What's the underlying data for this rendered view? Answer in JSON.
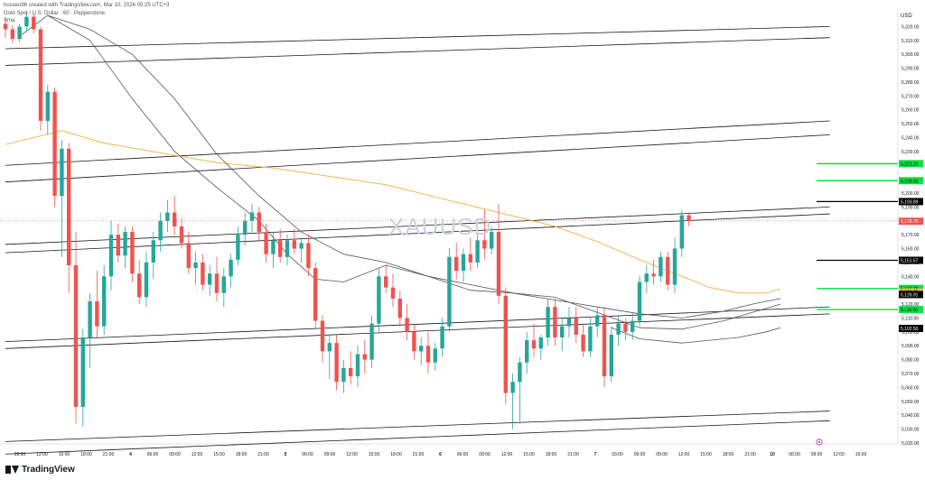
{
  "header": {
    "credit": "husseo96 created with TradingView.com, Mar 10, 2026 05:25 UTC+3",
    "symbol_line": "Gold Spot / U.S. Dollar · 60 · Pepperstone",
    "indicator": "Sma"
  },
  "watermark": "XAUUSD",
  "brand": "TradingView",
  "currency": "USD",
  "colors": {
    "up": "#26a69a",
    "down": "#ef5350",
    "sma200": "#f0b74e",
    "sma_dark": "#555555",
    "green_level": "#00e640",
    "black_level": "#000000"
  },
  "chart_data": {
    "type": "candlestick",
    "y_axis": {
      "min": 5020,
      "max": 5330,
      "ticks": [
        5020,
        5030,
        5040,
        5050,
        5060,
        5070,
        5080,
        5090,
        5100,
        5110,
        5120,
        5130,
        5140,
        5150,
        5160,
        5170,
        5180,
        5190,
        5200,
        5210,
        5220,
        5230,
        5240,
        5250,
        5260,
        5270,
        5280,
        5290,
        5300,
        5310,
        5320
      ],
      "tick_labels": [
        "5,020.00",
        "5,030.00",
        "5,040.00",
        "5,050.00",
        "5,060.00",
        "5,070.00",
        "5,080.00",
        "5,090.00",
        "5,100.00",
        "5,110.00",
        "5,120.00",
        "5,130.00",
        "5,140.00",
        "5,150.00",
        "5,160.00",
        "5,170.00",
        "5,180.00",
        "5,190.00",
        "5,200.00",
        "5,210.00",
        "5,220.00",
        "5,230.00",
        "5,240.00",
        "5,250.00",
        "5,260.00",
        "5,270.00",
        "5,280.00",
        "5,290.00",
        "5,300.00",
        "5,310.00",
        "5,320.00"
      ]
    },
    "x_axis": {
      "labels": [
        "09:00",
        "12:00",
        "15:00",
        "18:00",
        "21:00",
        "4",
        "06:00",
        "09:00",
        "12:00",
        "15:00",
        "18:00",
        "21:00",
        "5",
        "06:00",
        "09:00",
        "12:00",
        "15:00",
        "18:00",
        "21:00",
        "6",
        "06:00",
        "09:00",
        "12:00",
        "15:00",
        "18:00",
        "21:00",
        "7",
        "03:00",
        "06:00",
        "09:00",
        "12:00",
        "15:00",
        "18:00",
        "21:00",
        "10",
        "06:00",
        "09:00",
        "12:00",
        "15:00"
      ]
    },
    "price_labels": [
      {
        "value": 5221.21,
        "text": "5,221.21",
        "style": "green"
      },
      {
        "value": 5208.93,
        "text": "5,208.93",
        "style": "green"
      },
      {
        "value": 5193.89,
        "text": "5,193.89",
        "style": "black"
      },
      {
        "value": 5179.7,
        "text": "5,179.70",
        "style": "red"
      },
      {
        "value": 5151.57,
        "text": "5,151.57",
        "style": "black"
      },
      {
        "value": 5131.29,
        "text": "5,131.29",
        "style": "green"
      },
      {
        "value": 5128.75,
        "text": "5,128.75",
        "style": "orange"
      },
      {
        "value": 5126.91,
        "text": "5,126.91",
        "style": "black"
      },
      {
        "value": 5116.09,
        "text": "5,116.09",
        "style": "green"
      },
      {
        "value": 5102.5,
        "text": "5,102.50",
        "style": "black"
      }
    ],
    "levels": [
      {
        "value": 5221.21,
        "style": "green"
      },
      {
        "value": 5208.93,
        "style": "green"
      },
      {
        "value": 5193.89,
        "style": "black"
      },
      {
        "value": 5151.57,
        "style": "black"
      },
      {
        "value": 5131.29,
        "style": "green"
      },
      {
        "value": 5116.09,
        "style": "green"
      }
    ],
    "trendlines": [
      {
        "from": [
          0,
          5304
        ],
        "to": [
          117,
          5320
        ]
      },
      {
        "from": [
          0,
          5292
        ],
        "to": [
          117,
          5312
        ]
      },
      {
        "from": [
          0,
          5220
        ],
        "to": [
          117,
          5252
        ]
      },
      {
        "from": [
          0,
          5208
        ],
        "to": [
          117,
          5242
        ]
      },
      {
        "from": [
          0,
          5163
        ],
        "to": [
          117,
          5190
        ]
      },
      {
        "from": [
          0,
          5157
        ],
        "to": [
          117,
          5185
        ]
      },
      {
        "from": [
          0,
          5093
        ],
        "to": [
          117,
          5118
        ]
      },
      {
        "from": [
          0,
          5088
        ],
        "to": [
          117,
          5113
        ]
      },
      {
        "from": [
          0,
          5021
        ],
        "to": [
          117,
          5043
        ]
      },
      {
        "from": [
          0,
          5012
        ],
        "to": [
          117,
          5036
        ]
      }
    ],
    "sma_series": [
      {
        "color": "sma200",
        "points": [
          [
            0,
            5235
          ],
          [
            8,
            5245
          ],
          [
            14,
            5236
          ],
          [
            22,
            5229
          ],
          [
            30,
            5222
          ],
          [
            38,
            5218
          ],
          [
            46,
            5212
          ],
          [
            54,
            5206
          ],
          [
            62,
            5196
          ],
          [
            70,
            5186
          ],
          [
            78,
            5176
          ],
          [
            84,
            5165
          ],
          [
            90,
            5152
          ],
          [
            96,
            5140
          ],
          [
            100,
            5132
          ],
          [
            104,
            5128
          ],
          [
            108,
            5128
          ],
          [
            110,
            5131
          ]
        ]
      },
      {
        "color": "sma_dark",
        "points": [
          [
            2,
            5313
          ],
          [
            6,
            5328
          ],
          [
            12,
            5310
          ],
          [
            18,
            5268
          ],
          [
            24,
            5230
          ],
          [
            30,
            5204
          ],
          [
            36,
            5180
          ],
          [
            40,
            5156
          ],
          [
            44,
            5138
          ],
          [
            48,
            5136
          ],
          [
            54,
            5148
          ],
          [
            60,
            5140
          ],
          [
            66,
            5130
          ],
          [
            72,
            5128
          ],
          [
            78,
            5125
          ],
          [
            84,
            5114
          ],
          [
            90,
            5103
          ],
          [
            96,
            5102
          ],
          [
            102,
            5108
          ],
          [
            106,
            5114
          ],
          [
            110,
            5120
          ]
        ]
      },
      {
        "color": "sma_dark",
        "points": [
          [
            6,
            5328
          ],
          [
            12,
            5318
          ],
          [
            18,
            5300
          ],
          [
            24,
            5268
          ],
          [
            30,
            5228
          ],
          [
            36,
            5198
          ],
          [
            42,
            5172
          ],
          [
            48,
            5156
          ],
          [
            54,
            5150
          ],
          [
            60,
            5140
          ],
          [
            66,
            5134
          ],
          [
            72,
            5128
          ],
          [
            78,
            5123
          ],
          [
            84,
            5118
          ],
          [
            90,
            5113
          ],
          [
            96,
            5110
          ],
          [
            102,
            5115
          ],
          [
            106,
            5120
          ],
          [
            110,
            5124
          ]
        ]
      },
      {
        "color": "sma_dark",
        "points": [
          [
            86,
            5103
          ],
          [
            90,
            5095
          ],
          [
            96,
            5092
          ],
          [
            100,
            5094
          ],
          [
            104,
            5096
          ],
          [
            108,
            5100
          ],
          [
            110,
            5103
          ]
        ]
      }
    ],
    "candles": [
      [
        5322,
        5326,
        5312,
        5318
      ],
      [
        5318,
        5321,
        5308,
        5311
      ],
      [
        5311,
        5322,
        5309,
        5320
      ],
      [
        5320,
        5330,
        5316,
        5327
      ],
      [
        5327,
        5329,
        5315,
        5318
      ],
      [
        5318,
        5320,
        5245,
        5252
      ],
      [
        5252,
        5278,
        5242,
        5273
      ],
      [
        5273,
        5276,
        5190,
        5198
      ],
      [
        5198,
        5238,
        5154,
        5232
      ],
      [
        5232,
        5236,
        5128,
        5148
      ],
      [
        5148,
        5172,
        5034,
        5046
      ],
      [
        5046,
        5102,
        5032,
        5096
      ],
      [
        5096,
        5128,
        5074,
        5122
      ],
      [
        5122,
        5144,
        5096,
        5104
      ],
      [
        5104,
        5148,
        5098,
        5140
      ],
      [
        5140,
        5180,
        5130,
        5170
      ],
      [
        5170,
        5178,
        5150,
        5155
      ],
      [
        5155,
        5176,
        5146,
        5172
      ],
      [
        5172,
        5176,
        5136,
        5142
      ],
      [
        5142,
        5152,
        5120,
        5125
      ],
      [
        5125,
        5158,
        5118,
        5150
      ],
      [
        5150,
        5172,
        5138,
        5166
      ],
      [
        5166,
        5186,
        5158,
        5180
      ],
      [
        5180,
        5195,
        5172,
        5186
      ],
      [
        5186,
        5198,
        5170,
        5176
      ],
      [
        5176,
        5182,
        5160,
        5164
      ],
      [
        5164,
        5172,
        5142,
        5146
      ],
      [
        5146,
        5158,
        5134,
        5150
      ],
      [
        5150,
        5156,
        5130,
        5134
      ],
      [
        5134,
        5148,
        5126,
        5142
      ],
      [
        5142,
        5154,
        5122,
        5128
      ],
      [
        5128,
        5146,
        5118,
        5140
      ],
      [
        5140,
        5156,
        5132,
        5152
      ],
      [
        5152,
        5176,
        5148,
        5170
      ],
      [
        5170,
        5186,
        5162,
        5180
      ],
      [
        5180,
        5192,
        5172,
        5186
      ],
      [
        5186,
        5190,
        5166,
        5172
      ],
      [
        5172,
        5178,
        5150,
        5156
      ],
      [
        5156,
        5172,
        5146,
        5166
      ],
      [
        5166,
        5174,
        5150,
        5154
      ],
      [
        5154,
        5170,
        5148,
        5166
      ],
      [
        5166,
        5174,
        5156,
        5160
      ],
      [
        5160,
        5168,
        5150,
        5164
      ],
      [
        5164,
        5170,
        5140,
        5146
      ],
      [
        5146,
        5150,
        5102,
        5108
      ],
      [
        5108,
        5112,
        5078,
        5086
      ],
      [
        5086,
        5098,
        5066,
        5092
      ],
      [
        5092,
        5098,
        5058,
        5064
      ],
      [
        5064,
        5080,
        5056,
        5074
      ],
      [
        5074,
        5086,
        5062,
        5068
      ],
      [
        5068,
        5090,
        5060,
        5084
      ],
      [
        5084,
        5094,
        5070,
        5080
      ],
      [
        5080,
        5112,
        5074,
        5106
      ],
      [
        5106,
        5146,
        5100,
        5140
      ],
      [
        5140,
        5148,
        5128,
        5132
      ],
      [
        5132,
        5142,
        5118,
        5124
      ],
      [
        5124,
        5130,
        5104,
        5110
      ],
      [
        5110,
        5120,
        5094,
        5100
      ],
      [
        5100,
        5106,
        5080,
        5086
      ],
      [
        5086,
        5096,
        5076,
        5090
      ],
      [
        5090,
        5100,
        5070,
        5078
      ],
      [
        5078,
        5092,
        5072,
        5088
      ],
      [
        5088,
        5110,
        5082,
        5104
      ],
      [
        5104,
        5160,
        5100,
        5154
      ],
      [
        5154,
        5164,
        5138,
        5144
      ],
      [
        5144,
        5160,
        5136,
        5156
      ],
      [
        5156,
        5168,
        5144,
        5150
      ],
      [
        5150,
        5172,
        5146,
        5166
      ],
      [
        5166,
        5188,
        5152,
        5160
      ],
      [
        5160,
        5176,
        5156,
        5172
      ],
      [
        5172,
        5192,
        5120,
        5126
      ],
      [
        5126,
        5132,
        5048,
        5056
      ],
      [
        5056,
        5070,
        5030,
        5064
      ],
      [
        5064,
        5082,
        5034,
        5078
      ],
      [
        5078,
        5100,
        5070,
        5094
      ],
      [
        5094,
        5106,
        5082,
        5088
      ],
      [
        5088,
        5098,
        5080,
        5096
      ],
      [
        5096,
        5124,
        5090,
        5118
      ],
      [
        5118,
        5124,
        5090,
        5096
      ],
      [
        5096,
        5110,
        5086,
        5104
      ],
      [
        5104,
        5118,
        5096,
        5110
      ],
      [
        5110,
        5118,
        5092,
        5098
      ],
      [
        5098,
        5106,
        5082,
        5086
      ],
      [
        5086,
        5110,
        5082,
        5104
      ],
      [
        5104,
        5118,
        5096,
        5112
      ],
      [
        5112,
        5118,
        5060,
        5068
      ],
      [
        5068,
        5104,
        5064,
        5098
      ],
      [
        5098,
        5112,
        5090,
        5106
      ],
      [
        5106,
        5110,
        5094,
        5100
      ],
      [
        5100,
        5114,
        5094,
        5108
      ],
      [
        5108,
        5140,
        5104,
        5136
      ],
      [
        5136,
        5148,
        5128,
        5142
      ],
      [
        5142,
        5152,
        5134,
        5140
      ],
      [
        5140,
        5158,
        5136,
        5154
      ],
      [
        5154,
        5158,
        5130,
        5134
      ],
      [
        5134,
        5168,
        5128,
        5160
      ],
      [
        5160,
        5188,
        5154,
        5184
      ],
      [
        5184,
        5186,
        5176,
        5180
      ]
    ]
  }
}
